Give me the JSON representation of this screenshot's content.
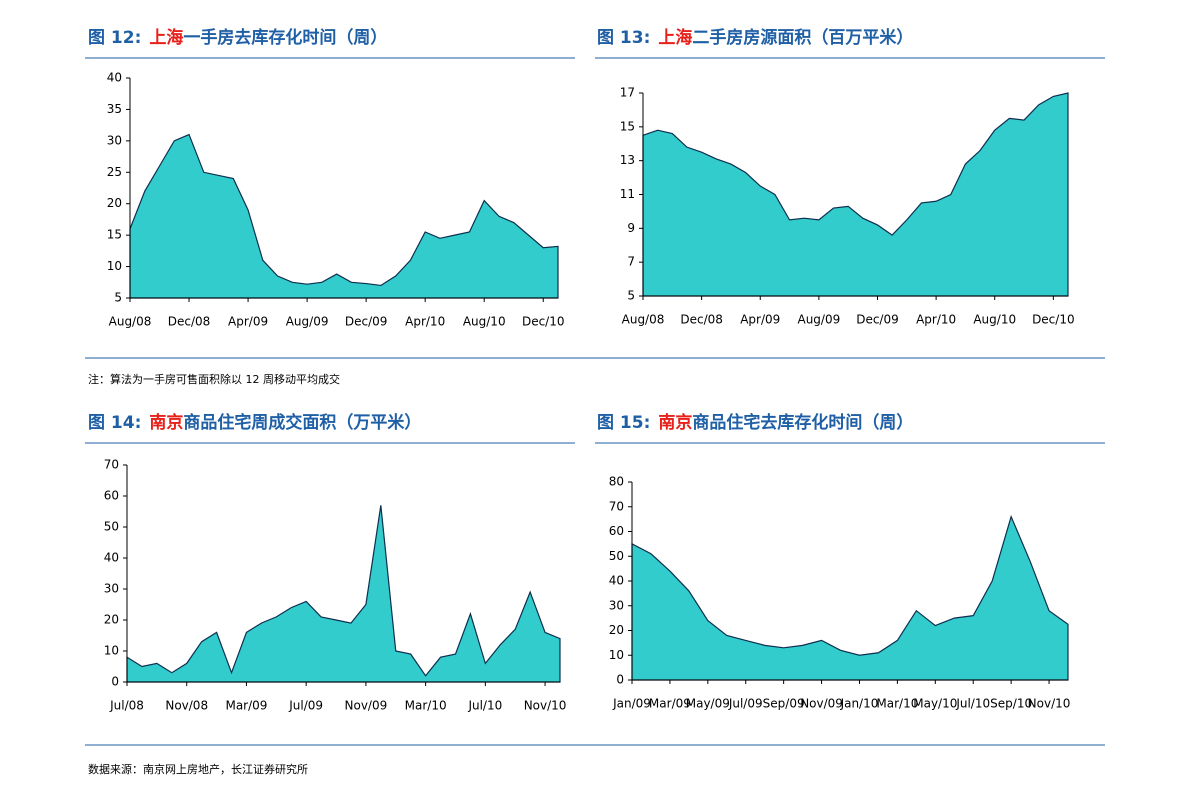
{
  "chart_data": [
    {
      "type": "area",
      "title_parts": [
        "图 12:",
        "上海",
        "一手房去库存化时间（周）"
      ],
      "title_colors": [
        "#1f5fa6",
        "#e8201a",
        "#1f5fa6"
      ],
      "categories": [
        "Aug/08",
        null,
        null,
        null,
        "Dec/08",
        null,
        null,
        null,
        "Apr/09",
        null,
        null,
        null,
        "Aug/09",
        null,
        null,
        null,
        "Dec/09",
        null,
        null,
        null,
        "Apr/10",
        null,
        null,
        null,
        "Aug/10",
        null,
        null,
        null,
        "Dec/10",
        null
      ],
      "values": [
        16,
        22,
        26,
        30,
        31,
        25,
        24.5,
        24,
        19,
        11,
        8.5,
        7.5,
        7.2,
        7.5,
        8.8,
        7.5,
        7.3,
        7,
        8.5,
        11,
        15.5,
        14.5,
        15,
        15.5,
        20.5,
        18,
        17,
        15,
        13,
        13.2
      ],
      "ylim": [
        5,
        40
      ],
      "yticks": [
        5,
        10,
        15,
        20,
        25,
        30,
        35,
        40
      ],
      "color": "#33cccc",
      "line_color": "#0d2f4f"
    },
    {
      "type": "area",
      "title_parts": [
        "图 13:",
        "上海",
        "二手房房源面积（百万平米）"
      ],
      "title_colors": [
        "#1f5fa6",
        "#e8201a",
        "#1f5fa6"
      ],
      "categories": [
        "Aug/08",
        null,
        null,
        null,
        "Dec/08",
        null,
        null,
        null,
        "Apr/09",
        null,
        null,
        null,
        "Aug/09",
        null,
        null,
        null,
        "Dec/09",
        null,
        null,
        null,
        "Apr/10",
        null,
        null,
        null,
        "Aug/10",
        null,
        null,
        null,
        "Dec/10",
        null
      ],
      "values": [
        14.5,
        14.8,
        14.6,
        13.8,
        13.5,
        13.1,
        12.8,
        12.3,
        11.5,
        11,
        9.5,
        9.6,
        9.5,
        10.2,
        10.3,
        9.6,
        9.2,
        8.6,
        9.5,
        10.5,
        10.6,
        11,
        12.8,
        13.6,
        14.8,
        15.5,
        15.4,
        16.3,
        16.8,
        17
      ],
      "ylim": [
        5,
        17
      ],
      "yticks": [
        5,
        7,
        9,
        11,
        13,
        15,
        17
      ],
      "color": "#33cccc",
      "line_color": "#0d2f4f"
    },
    {
      "type": "area",
      "title_parts": [
        "图 14:",
        "南京",
        "商品住宅周成交面积（万平米）"
      ],
      "title_colors": [
        "#1f5fa6",
        "#e8201a",
        "#1f5fa6"
      ],
      "categories": [
        "Jul/08",
        null,
        null,
        null,
        "Nov/08",
        null,
        null,
        null,
        "Mar/09",
        null,
        null,
        null,
        "Jul/09",
        null,
        null,
        null,
        "Nov/09",
        null,
        null,
        null,
        "Mar/10",
        null,
        null,
        null,
        "Jul/10",
        null,
        null,
        null,
        "Nov/10",
        null
      ],
      "values": [
        8,
        5,
        6,
        3,
        6,
        13,
        16,
        3,
        16,
        19,
        21,
        24,
        26,
        21,
        20,
        19,
        25,
        57,
        10,
        9,
        2,
        8,
        9,
        22,
        6,
        12,
        17,
        29,
        16,
        14
      ],
      "ylim": [
        0,
        70
      ],
      "yticks": [
        0,
        10,
        20,
        30,
        40,
        50,
        60,
        70
      ],
      "color": "#33cccc",
      "line_color": "#0d2f4f"
    },
    {
      "type": "area",
      "title_parts": [
        "图 15:",
        "南京",
        "商品住宅去库存化时间（周）"
      ],
      "title_colors": [
        "#1f5fa6",
        "#e8201a",
        "#1f5fa6"
      ],
      "categories": [
        "Jan/09",
        null,
        "Mar/09",
        null,
        "May/09",
        null,
        "Jul/09",
        null,
        "Sep/09",
        null,
        "Nov/09",
        null,
        "Jan/10",
        null,
        "Mar/10",
        null,
        "May/10",
        null,
        "Jul/10",
        null,
        "Sep/10",
        null,
        "Nov/10",
        null
      ],
      "values": [
        55,
        51,
        44,
        36,
        24,
        18,
        16,
        14,
        13,
        14,
        16,
        12,
        10,
        11,
        16,
        28,
        22,
        25,
        26,
        40,
        66,
        48,
        28,
        22.5
      ],
      "ylim": [
        0,
        80
      ],
      "yticks": [
        0,
        10,
        20,
        30,
        40,
        50,
        60,
        70,
        80
      ],
      "color": "#33cccc",
      "line_color": "#0d2f4f"
    }
  ],
  "note": "注：算法为一手房可售面积除以 12 周移动平均成交",
  "source": "数据来源：南京网上房地产，长江证券研究所"
}
